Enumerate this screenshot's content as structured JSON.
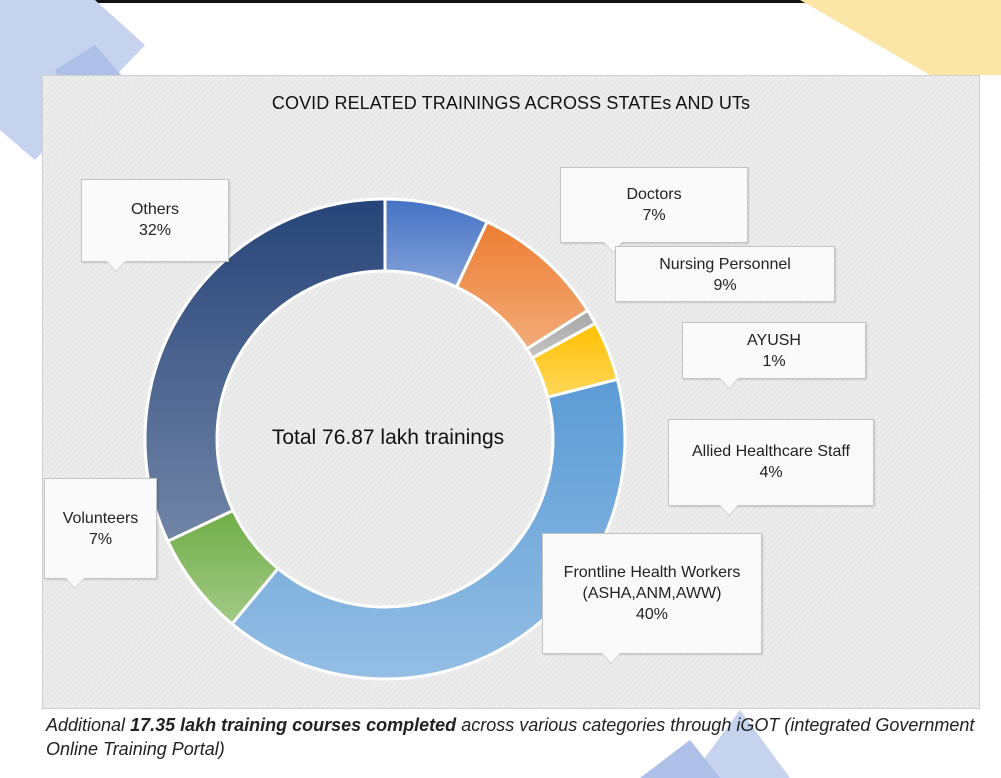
{
  "chart_data": {
    "type": "pie",
    "title": "COVID RELATED TRAININGS ACROSS STATEs AND UTs",
    "center_label": "Total 76.87 lakh trainings",
    "categories": [
      "Doctors",
      "Nursing Personnel",
      "AYUSH",
      "Allied Healthcare Staff",
      "Frontline Health Workers (ASHA,ANM,AWW)",
      "Volunteers",
      "Others"
    ],
    "values": [
      7,
      9,
      1,
      4,
      40,
      7,
      32
    ],
    "value_labels": [
      "7%",
      "9%",
      "1%",
      "4%",
      "40%",
      "7%",
      "32%"
    ],
    "colors": [
      "#4472c4",
      "#ed7d31",
      "#a5a5a5",
      "#ffc000",
      "#5b9bd5",
      "#70ad47",
      "#264478"
    ],
    "legend": "callouts"
  },
  "labels": {
    "doctors": {
      "line1": "Doctors",
      "pct": "7%"
    },
    "nursing": {
      "line1": "Nursing Personnel",
      "pct": "9%"
    },
    "ayush": {
      "line1": "AYUSH",
      "pct": "1%"
    },
    "allied": {
      "line1": "Allied Healthcare Staff",
      "pct": "4%"
    },
    "frontline": {
      "line1": "Frontline Health Workers",
      "line2": "(ASHA,ANM,AWW)",
      "pct": "40%"
    },
    "volunteers": {
      "line1": "Volunteers",
      "pct": "7%"
    },
    "others": {
      "line1": "Others",
      "pct": "32%"
    }
  },
  "footnote": {
    "pre": "Additional ",
    "bold": "17.35 lakh training courses completed",
    "post": " across various categories through iGOT (integrated Government Online Training Portal)"
  }
}
